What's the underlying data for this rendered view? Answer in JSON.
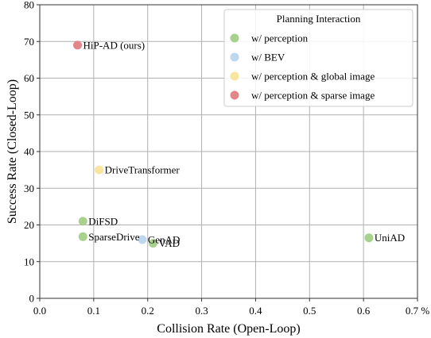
{
  "chart_data": {
    "type": "scatter",
    "xlabel": "Collision Rate (Open-Loop)",
    "ylabel": "Success Rate (Closed-Loop)",
    "xlim": [
      0,
      0.7
    ],
    "ylim": [
      0,
      80
    ],
    "x_ticks": [
      "0.0",
      "0.1",
      "0.2",
      "0.3",
      "0.4",
      "0.5",
      "0.6",
      "0.7 %"
    ],
    "y_ticks": [
      "0",
      "10",
      "20",
      "30",
      "40",
      "50",
      "60",
      "70",
      "80"
    ],
    "grid": true,
    "legend": {
      "title": "Planning Interaction",
      "placement": "top-right",
      "entries": [
        {
          "label": "w/ perception",
          "color": "#a9d18e"
        },
        {
          "label": "w/ BEV",
          "color": "#bdd7ee"
        },
        {
          "label": "w/ perception & global image",
          "color": "#f8e5a0"
        },
        {
          "label": "w/ perception & sparse image",
          "color": "#e3868a"
        }
      ]
    },
    "points": [
      {
        "label": "HiP-AD (ours)",
        "x": 0.07,
        "y": 69,
        "category": 3
      },
      {
        "label": "DriveTransformer",
        "x": 0.11,
        "y": 35,
        "category": 2
      },
      {
        "label": "DiFSD",
        "x": 0.08,
        "y": 21,
        "category": 0
      },
      {
        "label": "SparseDrive",
        "x": 0.08,
        "y": 16.8,
        "category": 0
      },
      {
        "label": "GenAD",
        "x": 0.19,
        "y": 16,
        "category": 1
      },
      {
        "label": "VAD",
        "x": 0.21,
        "y": 15,
        "category": 0
      },
      {
        "label": "UniAD",
        "x": 0.61,
        "y": 16.5,
        "category": 0
      }
    ]
  }
}
